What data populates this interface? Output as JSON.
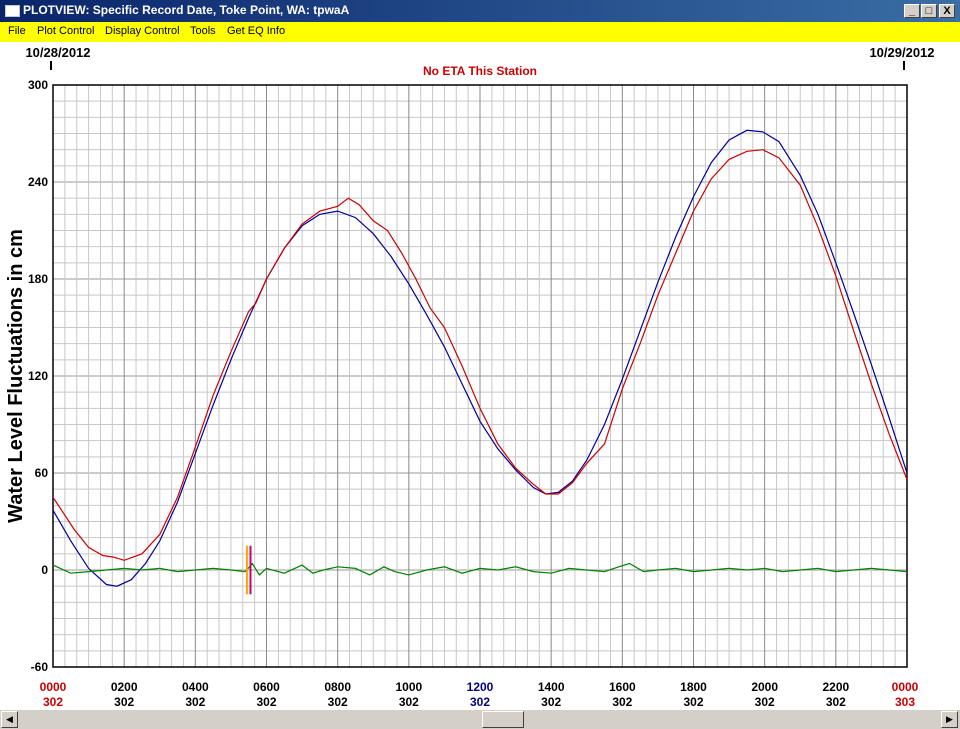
{
  "window": {
    "title": "PLOTVIEW: Specific Record Date, Toke Point, WA: tpwaA",
    "minimize": "_",
    "maximize": "□",
    "close": "X"
  },
  "menu": {
    "file": "File",
    "plot_control": "Plot Control",
    "display_control": "Display Control",
    "tools": "Tools",
    "get_eq_info": "Get EQ Info"
  },
  "scrollbar": {
    "left": "◀",
    "right": "▶"
  },
  "chart_data": {
    "type": "line",
    "title": "No ETA This Station",
    "date_left": "10/28/2012",
    "date_right": "10/29/2012",
    "ylabel": "Water Level Fluctuations in cm",
    "ylim": [
      -60,
      300
    ],
    "xlim": [
      0,
      24
    ],
    "yticks": [
      -60,
      0,
      60,
      120,
      180,
      240,
      300
    ],
    "xticks": [
      {
        "x": 0,
        "time": "0000",
        "day": "302",
        "color": "#cc0000"
      },
      {
        "x": 2,
        "time": "0200",
        "day": "302",
        "color": "#000000"
      },
      {
        "x": 4,
        "time": "0400",
        "day": "302",
        "color": "#000000"
      },
      {
        "x": 6,
        "time": "0600",
        "day": "302",
        "color": "#000000"
      },
      {
        "x": 8,
        "time": "0800",
        "day": "302",
        "color": "#000000"
      },
      {
        "x": 10,
        "time": "1000",
        "day": "302",
        "color": "#000000"
      },
      {
        "x": 12,
        "time": "1200",
        "day": "302",
        "color": "#000080"
      },
      {
        "x": 14,
        "time": "1400",
        "day": "302",
        "color": "#000000"
      },
      {
        "x": 16,
        "time": "1600",
        "day": "302",
        "color": "#000000"
      },
      {
        "x": 18,
        "time": "1800",
        "day": "302",
        "color": "#000000"
      },
      {
        "x": 20,
        "time": "2000",
        "day": "302",
        "color": "#000000"
      },
      {
        "x": 22,
        "time": "2200",
        "day": "302",
        "color": "#000000"
      },
      {
        "x": 24,
        "time": "0000",
        "day": "303",
        "color": "#cc0000"
      }
    ],
    "grid": true,
    "event_markers": [
      {
        "x": 5.45,
        "color": "#ffa500"
      },
      {
        "x": 5.55,
        "color": "#cc0066"
      }
    ],
    "series": [
      {
        "color": "#000099",
        "x": [
          0,
          0.5,
          1,
          1.5,
          1.8,
          2.2,
          2.6,
          3,
          3.5,
          4,
          4.5,
          5,
          5.5,
          6,
          6.5,
          7,
          7.5,
          8,
          8.5,
          9,
          9.5,
          10,
          10.5,
          11,
          11.5,
          12,
          12.5,
          13,
          13.5,
          13.85,
          14.2,
          14.6,
          15,
          15.5,
          16,
          16.5,
          17,
          17.5,
          18,
          18.5,
          19,
          19.5,
          19.95,
          20.4,
          21,
          21.5,
          22,
          22.5,
          23,
          23.5,
          24
        ],
        "y": [
          37,
          18,
          1,
          -9,
          -10,
          -6,
          4,
          18,
          42,
          72,
          102,
          130,
          156,
          180,
          199,
          213,
          220,
          222,
          218,
          208,
          194,
          177,
          158,
          138,
          115,
          92,
          75,
          62,
          51,
          47,
          48,
          55,
          68,
          90,
          118,
          148,
          178,
          206,
          231,
          252,
          266,
          272,
          271,
          265,
          244,
          220,
          190,
          159,
          127,
          94,
          60
        ]
      },
      {
        "color": "#cc0000",
        "x": [
          0,
          0.3,
          0.6,
          1,
          1.4,
          1.7,
          2,
          2.5,
          3,
          3.5,
          4,
          4.5,
          5,
          5.5,
          5.7,
          6,
          6.5,
          7,
          7.5,
          8,
          8.3,
          8.6,
          9,
          9.4,
          9.8,
          10.2,
          10.6,
          11,
          11.5,
          12,
          12.5,
          13,
          13.5,
          13.85,
          14.2,
          14.6,
          15,
          15.5,
          16,
          16.5,
          17,
          17.5,
          18,
          18.5,
          19,
          19.5,
          19.95,
          20.4,
          21,
          21.5,
          22,
          22.5,
          23,
          23.5,
          24
        ],
        "y": [
          45,
          35,
          25,
          14,
          9,
          8,
          6,
          10,
          22,
          45,
          76,
          108,
          135,
          160,
          165,
          180,
          199,
          214,
          222,
          225,
          230,
          226,
          216,
          210,
          196,
          180,
          162,
          150,
          126,
          100,
          78,
          63,
          53,
          47,
          47,
          54,
          66,
          78,
          112,
          140,
          170,
          196,
          222,
          242,
          254,
          259,
          260,
          255,
          238,
          212,
          182,
          148,
          115,
          84,
          56
        ]
      },
      {
        "color": "#008000",
        "x": [
          0,
          0.5,
          1,
          1.5,
          2,
          2.5,
          3,
          3.5,
          4,
          4.5,
          5,
          5.4,
          5.6,
          5.8,
          6,
          6.5,
          7,
          7.3,
          7.6,
          8,
          8.5,
          8.9,
          9.3,
          9.6,
          10,
          10.5,
          11,
          11.5,
          12,
          12.5,
          13,
          13.5,
          14,
          14.5,
          15,
          15.5,
          15.9,
          16.2,
          16.6,
          17,
          17.5,
          18,
          18.5,
          19,
          19.5,
          20,
          20.5,
          21,
          21.5,
          22,
          22.5,
          23,
          23.5,
          24
        ],
        "y": [
          3,
          -2,
          -1,
          0,
          1,
          0,
          1,
          -1,
          0,
          1,
          0,
          -1,
          4,
          -3,
          1,
          -2,
          3,
          -2,
          0,
          2,
          1,
          -3,
          2,
          -1,
          -3,
          0,
          2,
          -2,
          1,
          0,
          2,
          -1,
          -2,
          1,
          0,
          -1,
          2,
          4,
          -1,
          0,
          1,
          -1,
          0,
          1,
          0,
          1,
          -1,
          0,
          1,
          -1,
          0,
          1,
          0,
          -1
        ]
      }
    ]
  }
}
